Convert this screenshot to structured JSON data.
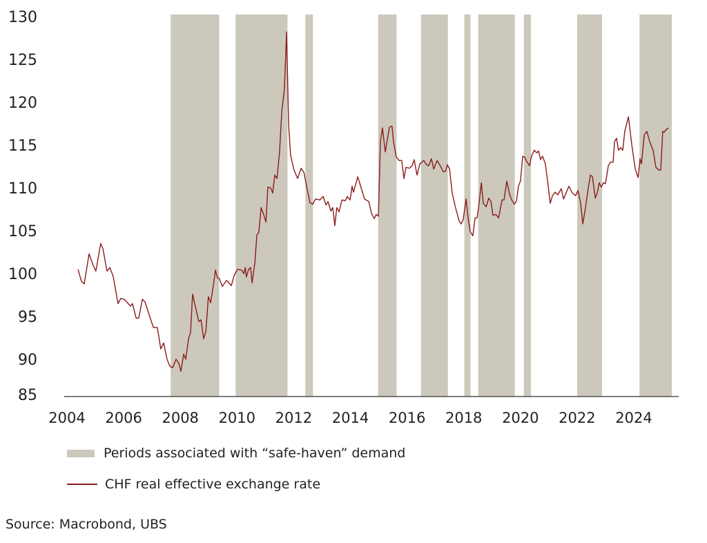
{
  "chart_data": {
    "type": "line",
    "title": "",
    "xlabel": "",
    "ylabel": "",
    "ylim": [
      85,
      130
    ],
    "xlim": [
      2004,
      2026
    ],
    "grid": false,
    "legend_placement": "bottom",
    "yticks": [
      "85",
      "90",
      "95",
      "100",
      "105",
      "110",
      "115",
      "120",
      "125",
      "130"
    ],
    "xticks": [
      "2004",
      "2006",
      "2008",
      "2010",
      "2012",
      "2014",
      "2016",
      "2018",
      "2020",
      "2022",
      "2024"
    ],
    "colors": {
      "line": "#8b1a1a",
      "band": "#ccc8bc",
      "axis": "#333333"
    },
    "legend": [
      {
        "type": "band",
        "label": "Periods associated with “safe-haven” demand"
      },
      {
        "type": "line",
        "label": "CHF real effective exchange rate"
      }
    ],
    "bands": [
      [
        2007.66,
        2009.37
      ],
      [
        2009.95,
        2011.78
      ],
      [
        2012.41,
        2012.68
      ],
      [
        2014.98,
        2015.63
      ],
      [
        2016.49,
        2017.44
      ],
      [
        2018.02,
        2018.24
      ],
      [
        2018.51,
        2019.8
      ],
      [
        2020.12,
        2020.37
      ],
      [
        2022.0,
        2022.88
      ],
      [
        2024.2,
        2025.34
      ]
    ],
    "series": [
      {
        "name": "CHF real effective exchange rate",
        "x": [
          2004.39,
          2004.51,
          2004.61,
          2004.78,
          2004.93,
          2005.02,
          2005.19,
          2005.27,
          2005.41,
          2005.51,
          2005.63,
          2005.8,
          2005.9,
          2006.02,
          2006.24,
          2006.31,
          2006.44,
          2006.53,
          2006.66,
          2006.75,
          2006.9,
          2007.05,
          2007.19,
          2007.31,
          2007.41,
          2007.53,
          2007.63,
          2007.73,
          2007.85,
          2007.95,
          2008.02,
          2008.12,
          2008.19,
          2008.29,
          2008.36,
          2008.43,
          2008.56,
          2008.65,
          2008.73,
          2008.82,
          2008.9,
          2008.99,
          2009.07,
          2009.16,
          2009.24,
          2009.31,
          2009.38,
          2009.48,
          2009.63,
          2009.8,
          2009.9,
          2010.02,
          2010.16,
          2010.24,
          2010.29,
          2010.33,
          2010.41,
          2010.48,
          2010.53,
          2010.63,
          2010.7,
          2010.77,
          2010.85,
          2010.94,
          2011.02,
          2011.09,
          2011.19,
          2011.26,
          2011.33,
          2011.41,
          2011.5,
          2011.58,
          2011.67,
          2011.75,
          2011.82,
          2011.89,
          2012.01,
          2012.14,
          2012.26,
          2012.36,
          2012.48,
          2012.57,
          2012.67,
          2012.77,
          2012.92,
          2013.04,
          2013.14,
          2013.21,
          2013.31,
          2013.38,
          2013.45,
          2013.52,
          2013.6,
          2013.7,
          2013.82,
          2013.89,
          2013.99,
          2014.06,
          2014.11,
          2014.26,
          2014.38,
          2014.5,
          2014.65,
          2014.74,
          2014.84,
          2014.91,
          2014.99,
          2015.06,
          2015.13,
          2015.23,
          2015.38,
          2015.47,
          2015.52,
          2015.62,
          2015.72,
          2015.81,
          2015.89,
          2015.96,
          2016.08,
          2016.18,
          2016.25,
          2016.35,
          2016.45,
          2016.52,
          2016.59,
          2016.69,
          2016.76,
          2016.86,
          2016.94,
          2017.06,
          2017.15,
          2017.28,
          2017.35,
          2017.42,
          2017.5,
          2017.59,
          2017.71,
          2017.84,
          2017.91,
          2017.98,
          2018.08,
          2018.15,
          2018.23,
          2018.32,
          2018.4,
          2018.47,
          2018.54,
          2018.62,
          2018.69,
          2018.79,
          2018.88,
          2018.96,
          2019.03,
          2019.13,
          2019.23,
          2019.35,
          2019.42,
          2019.52,
          2019.62,
          2019.69,
          2019.79,
          2019.86,
          2019.93,
          2020.0,
          2020.08,
          2020.15,
          2020.22,
          2020.32,
          2020.39,
          2020.49,
          2020.57,
          2020.64,
          2020.71,
          2020.78,
          2020.88,
          2020.98,
          2021.05,
          2021.13,
          2021.22,
          2021.32,
          2021.44,
          2021.52,
          2021.61,
          2021.71,
          2021.83,
          2021.95,
          2022.03,
          2022.12,
          2022.2,
          2022.29,
          2022.39,
          2022.47,
          2022.54,
          2022.64,
          2022.71,
          2022.78,
          2022.85,
          2022.93,
          2023.0,
          2023.1,
          2023.17,
          2023.27,
          2023.32,
          2023.39,
          2023.46,
          2023.54,
          2023.61,
          2023.68,
          2023.81,
          2023.93,
          2024.05,
          2024.15,
          2024.22,
          2024.27,
          2024.37,
          2024.46,
          2024.56,
          2024.68,
          2024.78,
          2024.88,
          2024.95,
          2025.02,
          2025.07,
          2025.14,
          2025.22
        ],
        "values": [
          100.5,
          99.1,
          98.8,
          102.3,
          100.9,
          100.3,
          103.5,
          102.9,
          100.3,
          100.7,
          99.7,
          96.5,
          97.1,
          97.0,
          96.2,
          96.5,
          94.8,
          94.8,
          97.0,
          96.7,
          95.2,
          93.7,
          93.7,
          91.2,
          91.9,
          90.0,
          89.2,
          89.0,
          90.0,
          89.5,
          88.6,
          90.6,
          90.0,
          92.4,
          93.1,
          97.6,
          95.7,
          94.4,
          94.6,
          92.4,
          93.2,
          97.3,
          96.6,
          98.5,
          100.4,
          99.5,
          99.4,
          98.5,
          99.2,
          98.6,
          99.8,
          100.5,
          100.4,
          100.0,
          100.7,
          99.6,
          100.5,
          100.7,
          98.9,
          101.3,
          104.5,
          104.8,
          107.7,
          106.9,
          106.0,
          110.1,
          110.0,
          109.4,
          111.5,
          111.1,
          114.2,
          119.0,
          121.5,
          128.2,
          117.4,
          113.8,
          112.1,
          111.1,
          112.3,
          111.8,
          109.8,
          108.3,
          108.1,
          108.7,
          108.6,
          109.0,
          108.0,
          108.4,
          107.3,
          107.7,
          105.6,
          107.7,
          107.2,
          108.6,
          108.5,
          109.0,
          108.6,
          110.2,
          109.5,
          111.3,
          110.0,
          108.7,
          108.4,
          107.1,
          106.4,
          106.9,
          106.7,
          115.4,
          117.0,
          114.2,
          117.1,
          117.2,
          115.4,
          113.6,
          113.2,
          113.2,
          111.1,
          112.4,
          112.3,
          112.6,
          113.3,
          111.5,
          112.8,
          113.0,
          113.2,
          112.7,
          112.6,
          113.4,
          112.2,
          113.2,
          112.7,
          111.9,
          111.9,
          112.7,
          112.2,
          109.4,
          107.7,
          106.1,
          105.8,
          106.3,
          108.7,
          106.5,
          104.9,
          104.4,
          106.5,
          106.5,
          108.2,
          110.6,
          108.2,
          107.8,
          108.8,
          108.4,
          106.8,
          106.9,
          106.5,
          108.6,
          108.6,
          110.8,
          109.2,
          108.6,
          108.1,
          108.5,
          110.2,
          110.8,
          113.7,
          113.6,
          113.1,
          112.6,
          113.7,
          114.4,
          114.1,
          114.3,
          113.3,
          113.7,
          112.8,
          110.2,
          108.2,
          109.1,
          109.5,
          109.2,
          109.9,
          108.7,
          109.4,
          110.2,
          109.4,
          109.1,
          109.7,
          108.3,
          105.8,
          107.6,
          109.9,
          111.5,
          111.3,
          108.8,
          109.4,
          110.6,
          110.1,
          110.6,
          110.5,
          112.6,
          113.0,
          113.0,
          115.4,
          115.8,
          114.4,
          114.7,
          114.4,
          116.6,
          118.3,
          115.0,
          112.2,
          111.2,
          113.4,
          112.8,
          116.2,
          116.6,
          115.4,
          114.4,
          112.4,
          112.1,
          112.1,
          116.6,
          116.5,
          116.8,
          117.0
        ]
      }
    ]
  },
  "footer": {
    "source": "Source: Macrobond, UBS"
  }
}
